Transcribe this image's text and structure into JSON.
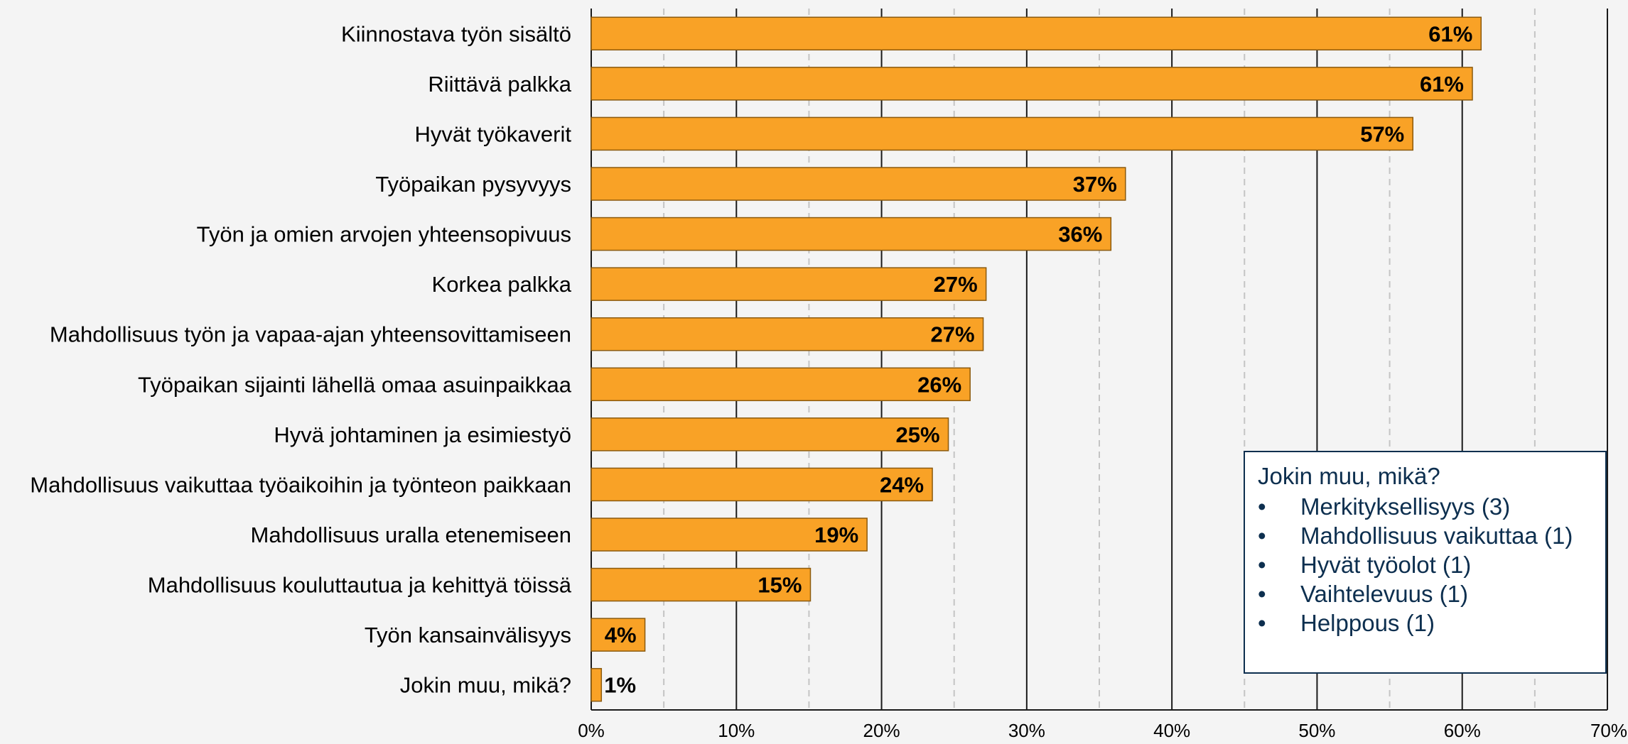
{
  "chart_data": {
    "type": "bar",
    "orientation": "horizontal",
    "categories": [
      "Kiinnostava työn sisältö",
      "Riittävä palkka",
      "Hyvät työkaverit",
      "Työpaikan pysyvyys",
      "Työn ja omien arvojen yhteensopivuus",
      "Korkea palkka",
      "Mahdollisuus työn ja vapaa-ajan yhteensovittamiseen",
      "Työpaikan sijainti lähellä omaa asuinpaikkaa",
      "Hyvä johtaminen ja esimiestyö",
      "Mahdollisuus vaikuttaa työaikoihin ja työnteon paikkaan",
      "Mahdollisuus uralla etenemiseen",
      "Mahdollisuus kouluttautua ja kehittyä töissä",
      "Työn kansainvälisyys",
      "Jokin muu, mikä?"
    ],
    "values": [
      61.3,
      60.7,
      56.6,
      36.8,
      35.8,
      27.2,
      27.0,
      26.1,
      24.6,
      23.5,
      19.0,
      15.1,
      3.7,
      0.7
    ],
    "data_labels": [
      "61%",
      "61%",
      "57%",
      "37%",
      "36%",
      "27%",
      "27%",
      "26%",
      "25%",
      "24%",
      "19%",
      "15%",
      "4%",
      "1%"
    ],
    "x_ticks": [
      "0%",
      "10%",
      "20%",
      "30%",
      "40%",
      "50%",
      "60%",
      "70%"
    ],
    "xlim": [
      0,
      70
    ],
    "major_gridlines": [
      0,
      10,
      20,
      30,
      40,
      50,
      60,
      70
    ],
    "minor_gridlines": [
      5,
      15,
      25,
      35,
      45,
      55,
      65
    ],
    "grid": true,
    "bar_color": "#f9a226",
    "bar_edge_color": "#8b5a0e"
  },
  "annotation_box": {
    "title": "Jokin muu, mikä?",
    "bullet": "•",
    "items": [
      "Merkityksellisyys (3)",
      "Mahdollisuus vaikuttaa (1)",
      "Hyvät työolot (1)",
      "Vaihtelevuus (1)",
      "Helppous (1)"
    ],
    "border_color": "#0d2f4f",
    "text_color": "#0d2f4f"
  }
}
